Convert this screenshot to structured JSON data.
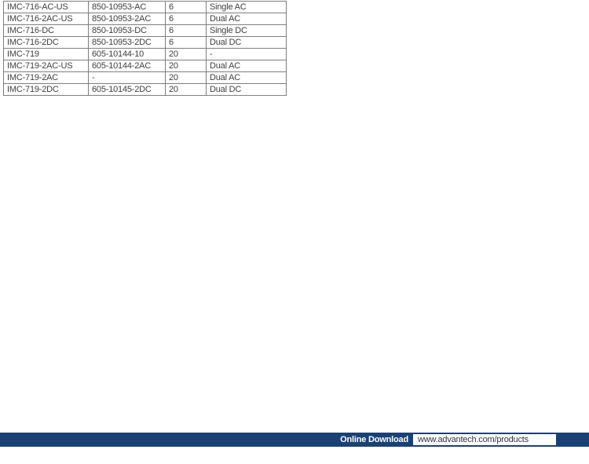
{
  "table": {
    "rows": [
      [
        "IMC-716-AC-US",
        "850-10953-AC",
        "6",
        "Single AC"
      ],
      [
        "IMC-716-2AC-US",
        "850-10953-2AC",
        "6",
        "Dual AC"
      ],
      [
        "IMC-716-DC",
        "850-10953-DC",
        "6",
        "Single DC"
      ],
      [
        "IMC-716-2DC",
        "850-10953-2DC",
        "6",
        "Dual DC"
      ],
      [
        "IMC-719",
        "605-10144-10",
        "20",
        "-"
      ],
      [
        "IMC-719-2AC-US",
        "605-10144-2AC",
        "20",
        "Dual AC"
      ],
      [
        "IMC-719-2AC",
        "-",
        "20",
        "Dual AC"
      ],
      [
        "IMC-719-2DC",
        "605-10145-2DC",
        "20",
        "Dual DC"
      ]
    ]
  },
  "footer": {
    "label": "Online Download",
    "url": "www.advantech.com/products",
    "bar_color": "#1a4173"
  }
}
